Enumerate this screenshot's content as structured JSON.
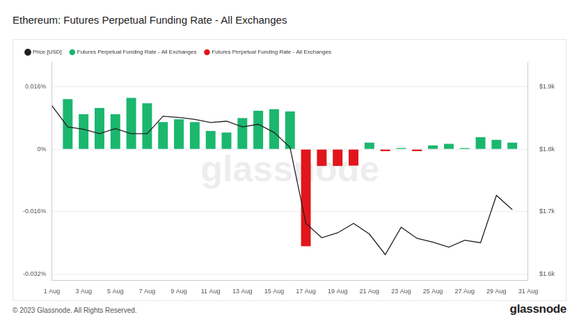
{
  "chart_data": {
    "type": "bar",
    "title": "Ethereum: Futures Perpetual Funding Rate - All Exchanges",
    "footer": "© 2023 Glassnode. All Rights Reserved.",
    "brand": "glassnode",
    "watermark": "glassnode",
    "categories": [
      "1 Aug",
      null,
      "3 Aug",
      null,
      "5 Aug",
      null,
      "7 Aug",
      null,
      "9 Aug",
      null,
      "11 Aug",
      null,
      "13 Aug",
      null,
      "15 Aug",
      null,
      "17 Aug",
      null,
      "19 Aug",
      null,
      "21 Aug",
      null,
      "23 Aug",
      null,
      "25 Aug",
      null,
      "27 Aug",
      null,
      "29 Aug",
      null,
      "31 Aug"
    ],
    "series": [
      {
        "name": "Futures Perpetual Funding Rate - All Exchanges",
        "color": "#1bb76e",
        "values": [
          null,
          0.0129,
          0.009,
          0.0106,
          0.009,
          0.0132,
          0.0118,
          0.007,
          0.0077,
          0.007,
          0.0047,
          0.0043,
          0.008,
          0.0099,
          0.0103,
          0.0097,
          null,
          null,
          null,
          null,
          0.0017,
          null,
          0.0003,
          null,
          0.001,
          0.0014,
          0.0003,
          0.0031,
          0.0024,
          0.0017,
          null
        ]
      },
      {
        "name": "Futures Perpetual Funding Rate - All Exchanges",
        "color": "#e0161c",
        "values": [
          null,
          null,
          null,
          null,
          null,
          null,
          null,
          null,
          null,
          null,
          null,
          null,
          null,
          null,
          null,
          null,
          -0.0249,
          -0.0043,
          -0.0043,
          -0.0042,
          null,
          -0.0005,
          null,
          -0.0005,
          null,
          null,
          null,
          null,
          null,
          null,
          null
        ]
      },
      {
        "name": "Price [USD]",
        "type": "line",
        "axis": "y2",
        "color": "#1f1f1f",
        "values": [
          1870,
          1836,
          1832,
          1825,
          1833,
          1825,
          1825,
          1853,
          1851,
          1848,
          1843,
          1845,
          1836,
          1840,
          1827,
          1803,
          1681,
          1658,
          1666,
          1681,
          1664,
          1631,
          1675,
          1657,
          1651,
          1643,
          1654,
          1650,
          1726,
          1703,
          null
        ]
      }
    ],
    "ylim": [
      -0.0336,
      0.0224
    ],
    "yticks": [
      {
        "value": -0.032,
        "label": "-0.032%"
      },
      {
        "value": -0.016,
        "label": "-0.016%"
      },
      {
        "value": 0,
        "label": "0%"
      },
      {
        "value": 0.016,
        "label": "0.016%"
      }
    ],
    "y2lim": [
      1590,
      1940
    ],
    "y2ticks": [
      {
        "value": 1600,
        "label": "$1.6k"
      },
      {
        "value": 1700,
        "label": "$1.7k"
      },
      {
        "value": 1800,
        "label": "$1.8k"
      },
      {
        "value": 1900,
        "label": "$1.9k"
      }
    ],
    "grid": true,
    "legend": "top left"
  }
}
